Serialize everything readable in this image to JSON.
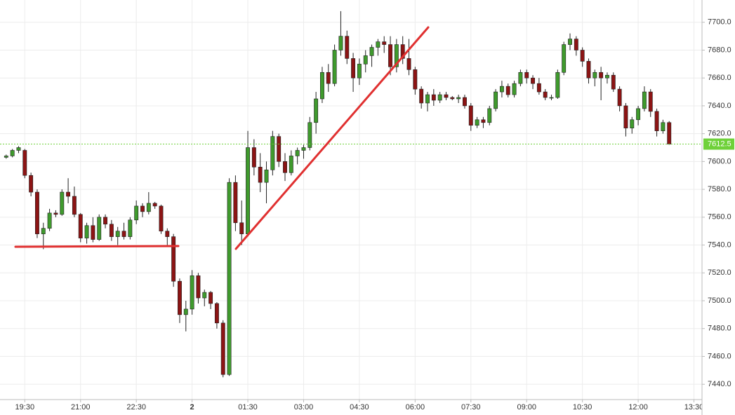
{
  "chart_data": {
    "type": "candlestick",
    "x": [
      -300,
      -290,
      -280,
      -270,
      -260,
      -250,
      -240,
      -230,
      -220,
      -210,
      -200,
      -190,
      -180,
      -170,
      -160,
      -150,
      -140,
      -130,
      -120,
      -110,
      -100,
      -90,
      -80,
      -70,
      -60,
      -50,
      -40,
      -30,
      -20,
      -10,
      0,
      10,
      20,
      30,
      40,
      50,
      60,
      70,
      80,
      90,
      100,
      110,
      120,
      130,
      140,
      150,
      160,
      170,
      180,
      190,
      200,
      210,
      220,
      230,
      240,
      250,
      260,
      270,
      280,
      290,
      300,
      310,
      320,
      330,
      340,
      350,
      360,
      370,
      380,
      390,
      400,
      410,
      420,
      430,
      440,
      450,
      460,
      470,
      480,
      490,
      500,
      510,
      520,
      530,
      540,
      550,
      560,
      570,
      580,
      590,
      600,
      610,
      620,
      630,
      640,
      650,
      660,
      670,
      680,
      690,
      700,
      710,
      720,
      730,
      740,
      750,
      760,
      770
    ],
    "open": [
      7603,
      7604,
      7608,
      7608,
      7590,
      7578,
      7548,
      7552,
      7563,
      7562,
      7578,
      7575,
      7562,
      7545,
      7554,
      7544,
      7560,
      7555,
      7546,
      7550,
      7546,
      7558,
      7568,
      7564,
      7570,
      7568,
      7550,
      7546,
      7514,
      7490,
      7494,
      7518,
      7502,
      7506,
      7498,
      7484,
      7447,
      7585,
      7556,
      7548,
      7610,
      7596,
      7585,
      7594,
      7618,
      7600,
      7592,
      7604,
      7608,
      7610,
      7628,
      7645,
      7664,
      7656,
      7680,
      7690,
      7674,
      7660,
      7670,
      7676,
      7682,
      7686,
      7684,
      7668,
      7684,
      7674,
      7666,
      7652,
      7642,
      7648,
      7644,
      7648,
      7646,
      7645,
      7646,
      7640,
      7626,
      7630,
      7628,
      7638,
      7650,
      7654,
      7648,
      7656,
      7664,
      7660,
      7656,
      7650,
      7646,
      7646,
      7664,
      7684,
      7688,
      7680,
      7672,
      7660,
      7664,
      7660,
      7662,
      7652,
      7640,
      7624,
      7630,
      7638,
      7650,
      7636,
      7622,
      7628
    ],
    "high": [
      7605,
      7609,
      7611,
      7609,
      7592,
      7580,
      7556,
      7566,
      7565,
      7580,
      7588,
      7582,
      7563,
      7556,
      7560,
      7562,
      7562,
      7558,
      7553,
      7556,
      7560,
      7572,
      7570,
      7578,
      7571,
      7569,
      7552,
      7548,
      7516,
      7500,
      7522,
      7520,
      7508,
      7507,
      7499,
      7486,
      7588,
      7590,
      7572,
      7622,
      7616,
      7606,
      7600,
      7622,
      7620,
      7606,
      7608,
      7610,
      7612,
      7632,
      7650,
      7668,
      7670,
      7684,
      7708,
      7694,
      7678,
      7674,
      7680,
      7684,
      7688,
      7690,
      7690,
      7688,
      7690,
      7688,
      7668,
      7654,
      7650,
      7652,
      7650,
      7650,
      7647,
      7648,
      7648,
      7642,
      7632,
      7632,
      7640,
      7652,
      7658,
      7656,
      7658,
      7666,
      7666,
      7662,
      7660,
      7652,
      7648,
      7666,
      7686,
      7692,
      7690,
      7682,
      7674,
      7666,
      7668,
      7664,
      7664,
      7654,
      7642,
      7632,
      7640,
      7654,
      7652,
      7638,
      7630,
      7629
    ],
    "low": [
      7602,
      7603,
      7606,
      7588,
      7575,
      7545,
      7537,
      7550,
      7560,
      7561,
      7570,
      7560,
      7542,
      7541,
      7542,
      7543,
      7552,
      7543,
      7540,
      7544,
      7544,
      7555,
      7560,
      7562,
      7566,
      7548,
      7540,
      7510,
      7484,
      7478,
      7490,
      7498,
      7496,
      7494,
      7480,
      7445,
      7446,
      7550,
      7540,
      7546,
      7590,
      7578,
      7570,
      7590,
      7596,
      7586,
      7590,
      7598,
      7602,
      7608,
      7620,
      7642,
      7650,
      7654,
      7676,
      7670,
      7650,
      7655,
      7664,
      7668,
      7676,
      7678,
      7662,
      7664,
      7670,
      7662,
      7648,
      7638,
      7636,
      7640,
      7642,
      7644,
      7644,
      7642,
      7638,
      7622,
      7624,
      7624,
      7626,
      7636,
      7646,
      7646,
      7646,
      7654,
      7656,
      7652,
      7648,
      7644,
      7644,
      7645,
      7662,
      7680,
      7676,
      7668,
      7656,
      7654,
      7644,
      7656,
      7650,
      7636,
      7618,
      7620,
      7626,
      7636,
      7632,
      7618,
      7620,
      7612
    ],
    "close": [
      7604,
      7608,
      7610,
      7590,
      7578,
      7548,
      7552,
      7563,
      7562,
      7578,
      7575,
      7562,
      7545,
      7554,
      7544,
      7560,
      7555,
      7546,
      7550,
      7546,
      7558,
      7568,
      7564,
      7570,
      7568,
      7550,
      7546,
      7514,
      7490,
      7494,
      7518,
      7502,
      7506,
      7498,
      7484,
      7447,
      7585,
      7556,
      7548,
      7610,
      7596,
      7585,
      7594,
      7618,
      7600,
      7592,
      7604,
      7608,
      7610,
      7628,
      7645,
      7664,
      7656,
      7680,
      7690,
      7674,
      7660,
      7670,
      7676,
      7682,
      7686,
      7684,
      7668,
      7684,
      7674,
      7666,
      7652,
      7642,
      7648,
      7644,
      7648,
      7646,
      7645,
      7646,
      7640,
      7626,
      7630,
      7628,
      7638,
      7650,
      7654,
      7648,
      7656,
      7664,
      7660,
      7656,
      7650,
      7646,
      7646,
      7664,
      7684,
      7688,
      7680,
      7672,
      7660,
      7664,
      7660,
      7662,
      7652,
      7640,
      7624,
      7630,
      7638,
      7650,
      7636,
      7622,
      7628,
      7612.5
    ],
    "up_color": "#3f9a2d",
    "down_color": "#8c1414",
    "last_price": 7612.5,
    "last_price_label": "7612.5",
    "last_price_color": "#6fd13a",
    "xlim": [
      -310,
      823
    ],
    "ylim": [
      7429,
      7716
    ],
    "xticks": [
      {
        "value": -270,
        "label": "19:30"
      },
      {
        "value": -180,
        "label": "21:00"
      },
      {
        "value": -90,
        "label": "22:30"
      },
      {
        "value": 0,
        "label": "2"
      },
      {
        "value": 90,
        "label": "01:30"
      },
      {
        "value": 180,
        "label": "03:00"
      },
      {
        "value": 270,
        "label": "04:30"
      },
      {
        "value": 360,
        "label": "06:00"
      },
      {
        "value": 450,
        "label": "07:30"
      },
      {
        "value": 540,
        "label": "09:00"
      },
      {
        "value": 630,
        "label": "10:30"
      },
      {
        "value": 720,
        "label": "12:00"
      },
      {
        "value": 810,
        "label": "13:30"
      }
    ],
    "yticks": [
      {
        "value": 7440,
        "label": "7440.0"
      },
      {
        "value": 7460,
        "label": "7460.0"
      },
      {
        "value": 7480,
        "label": "7480.0"
      },
      {
        "value": 7500,
        "label": "7500.0"
      },
      {
        "value": 7520,
        "label": "7520.0"
      },
      {
        "value": 7540,
        "label": "7540.0"
      },
      {
        "value": 7560,
        "label": "7560.0"
      },
      {
        "value": 7580,
        "label": "7580.0"
      },
      {
        "value": 7600,
        "label": "7600.0"
      },
      {
        "value": 7620,
        "label": "7620.0"
      },
      {
        "value": 7640,
        "label": "7640.0"
      },
      {
        "value": 7660,
        "label": "7660.0"
      },
      {
        "value": 7680,
        "label": "7680.0"
      },
      {
        "value": 7700,
        "label": "7700.0"
      }
    ],
    "grid": true
  }
}
